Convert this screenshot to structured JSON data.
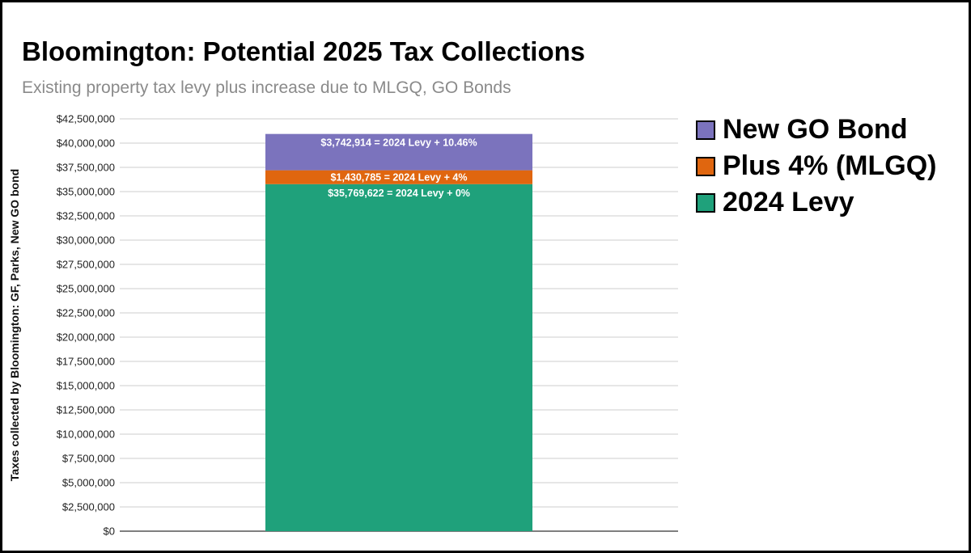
{
  "chart_data": {
    "type": "bar",
    "stacked": true,
    "title": "Bloomington: Potential 2025 Tax Collections",
    "subtitle": "Existing property tax levy plus increase due to MLGQ, GO Bonds",
    "xlabel": "",
    "ylabel": "Taxes collected by Bloomington: GF, Parks, New GO bond",
    "ylim": [
      0,
      42500000
    ],
    "y_ticks": [
      "$0",
      "$2,500,000",
      "$5,000,000",
      "$7,500,000",
      "$10,000,000",
      "$12,500,000",
      "$15,000,000",
      "$17,500,000",
      "$20,000,000",
      "$22,500,000",
      "$25,000,000",
      "$27,500,000",
      "$30,000,000",
      "$32,500,000",
      "$35,000,000",
      "$37,500,000",
      "$40,000,000",
      "$42,500,000"
    ],
    "grid": true,
    "legend_position": "right",
    "categories": [
      ""
    ],
    "series": [
      {
        "name": "2024 Levy",
        "values": [
          35769622
        ],
        "color": "#1fa17b",
        "label": "$35,769,622 = 2024 Levy + 0%"
      },
      {
        "name": "Plus 4% (MLGQ)",
        "values": [
          1430785
        ],
        "color": "#e0660f",
        "label": "$1,430,785 = 2024 Levy + 4%"
      },
      {
        "name": "New GO Bond",
        "values": [
          3742914
        ],
        "color": "#7b73bd",
        "label": "$3,742,914 = 2024 Levy + 10.46%"
      }
    ],
    "legend_order": [
      "New GO Bond",
      "Plus 4% (MLGQ)",
      "2024 Levy"
    ]
  }
}
